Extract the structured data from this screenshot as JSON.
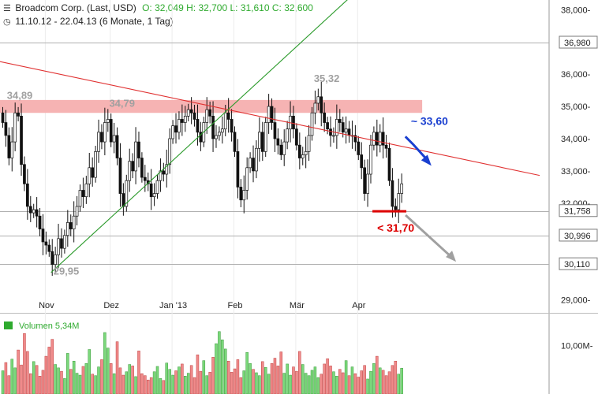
{
  "header": {
    "title": "Broadcom Corp. (Last, USD)",
    "ohlc": "O: 32,049  H: 32,700  L: 31,610  C: 32,600",
    "period": "11.10.12 - 22.04.13 (6 Monate, 1 Tag)"
  },
  "colors": {
    "up": "#2eaa2e",
    "down": "#111111",
    "vol_up": "#7bd87b",
    "vol_down": "#f08a8a",
    "resistance_zone": "#f6b3b3",
    "trend_down": "#e03030",
    "trend_up": "#2a9a2a",
    "arrow_up": "#1a3fd0",
    "arrow_down": "#a0a0a0",
    "support_mark": "#dd0000"
  },
  "chart_data": {
    "type": "candlestick",
    "y_axis": {
      "range": [
        28600,
        38300
      ],
      "ticks": [
        {
          "value": 29000,
          "label": "29,000-"
        },
        {
          "value": 32000,
          "label": "32,000-"
        },
        {
          "value": 33000,
          "label": "33,000-"
        },
        {
          "value": 34000,
          "label": "34,000-"
        },
        {
          "value": 35000,
          "label": "35,000-"
        },
        {
          "value": 36000,
          "label": "36,000-"
        },
        {
          "value": 38000,
          "label": "38,000-"
        }
      ],
      "levels": [
        {
          "value": 36980,
          "label": "36,980"
        },
        {
          "value": 31758,
          "label": "31,758"
        },
        {
          "value": 30996,
          "label": "30,996"
        },
        {
          "value": 30110,
          "label": "30,110"
        }
      ]
    },
    "x_axis": {
      "labels": [
        {
          "label": "Nov",
          "index": 14
        },
        {
          "label": "Dez",
          "index": 35
        },
        {
          "label": "Jan '13",
          "index": 55
        },
        {
          "label": "Feb",
          "index": 75
        },
        {
          "label": "Mär",
          "index": 95
        },
        {
          "label": "Apr",
          "index": 115
        }
      ]
    },
    "close": [
      34500,
      34100,
      33400,
      33900,
      34800,
      34700,
      33200,
      32600,
      31900,
      31700,
      31800,
      31600,
      31200,
      30800,
      30700,
      30500,
      30100,
      30400,
      30900,
      30600,
      31000,
      31400,
      31200,
      31600,
      31900,
      32400,
      32200,
      32600,
      33100,
      32800,
      33600,
      34200,
      33900,
      34500,
      34600,
      33900,
      34100,
      33400,
      32300,
      31900,
      32700,
      33300,
      33000,
      33900,
      33400,
      32800,
      32700,
      32600,
      32200,
      32300,
      32700,
      33000,
      32900,
      33200,
      34000,
      34400,
      34200,
      34600,
      34500,
      34700,
      34900,
      34800,
      34600,
      34200,
      33900,
      34500,
      34900,
      34700,
      34000,
      34100,
      34200,
      34300,
      34800,
      34600,
      34200,
      33600,
      32500,
      32100,
      32400,
      33100,
      33400,
      33000,
      33700,
      34200,
      33600,
      34500,
      35000,
      34500,
      34000,
      33800,
      33500,
      33900,
      34300,
      34700,
      34300,
      33800,
      33400,
      33500,
      33600,
      34100,
      34800,
      35100,
      35300,
      34800,
      34500,
      34300,
      34100,
      34100,
      34600,
      34500,
      34200,
      34300,
      34100,
      34100,
      33900,
      33500,
      33100,
      32300,
      32900,
      33800,
      34200,
      33800,
      34200,
      33800,
      33700,
      32700,
      31900,
      31800,
      32300,
      32600
    ],
    "annotations": [
      {
        "label": "34,89",
        "index": 3,
        "value": 34890
      },
      {
        "label": "34,79",
        "index": 32,
        "value": 34790
      },
      {
        "label": "35,32",
        "index": 102,
        "value": 35320
      },
      {
        "label": "29,95",
        "index": 16,
        "value": 29950
      },
      {
        "label": "~ 33,60",
        "index": 127,
        "value": 33600
      },
      {
        "label": "< 31,70",
        "index": 124,
        "value": 31700
      }
    ],
    "resistance_zone": {
      "low": 34800,
      "high": 35200,
      "from_index": 0,
      "to_index": 136
    },
    "trendlines": [
      {
        "name": "down",
        "from": {
          "index": -1,
          "value": 36400
        },
        "to": {
          "index": 174,
          "value": 32860
        }
      },
      {
        "name": "up",
        "from": {
          "index": 16,
          "value": 29850
        },
        "to": {
          "index": 114,
          "value": 38500
        }
      }
    ],
    "volume": {
      "label": "Volumen",
      "value": "5,34M",
      "ticks": [
        {
          "value": 10000000,
          "label": "10,00M-"
        }
      ],
      "max": 14000000,
      "values": [
        4.8,
        6.5,
        3.8,
        7.2,
        5.4,
        9.1,
        6.0,
        12.5,
        8.8,
        4.2,
        6.7,
        5.9,
        3.7,
        4.9,
        7.8,
        9.7,
        11.3,
        6.1,
        5.4,
        4.7,
        3.2,
        8.4,
        5.1,
        6.8,
        4.3,
        3.9,
        5.7,
        6.3,
        9.2,
        4.1,
        3.8,
        5.6,
        7.1,
        12.7,
        9.5,
        6.3,
        4.2,
        10.8,
        5.4,
        3.9,
        4.6,
        6.1,
        5.8,
        3.6,
        8.9,
        4.2,
        3.8,
        2.9,
        3.4,
        4.6,
        5.7,
        3.2,
        2.8,
        6.4,
        5.1,
        3.9,
        4.8,
        5.6,
        6.2,
        3.7,
        4.3,
        5.9,
        3.4,
        8.1,
        4.7,
        6.9,
        3.8,
        4.5,
        7.6,
        10.4,
        12.9,
        11.2,
        9.3,
        6.8,
        4.5,
        5.2,
        7.1,
        3.4,
        4.8,
        8.6,
        6.3,
        5.1,
        4.4,
        3.8,
        6.7,
        5.5,
        4.1,
        6.3,
        7.4,
        5.8,
        8.7,
        4.3,
        6.2,
        3.9,
        5.6,
        4.7,
        8.8,
        6.1,
        4.3,
        3.8,
        4.9,
        5.6,
        3.4,
        4.1,
        6.2,
        7.3,
        5.8,
        4.6,
        3.7,
        5.1,
        4.4,
        6.9,
        3.8,
        5.6,
        4.2,
        3.5,
        4.8,
        5.9,
        3.1,
        4.7,
        6.3,
        7.8,
        5.4,
        4.9,
        3.8,
        4.6,
        5.9,
        6.8,
        4.1,
        5.34
      ]
    }
  }
}
